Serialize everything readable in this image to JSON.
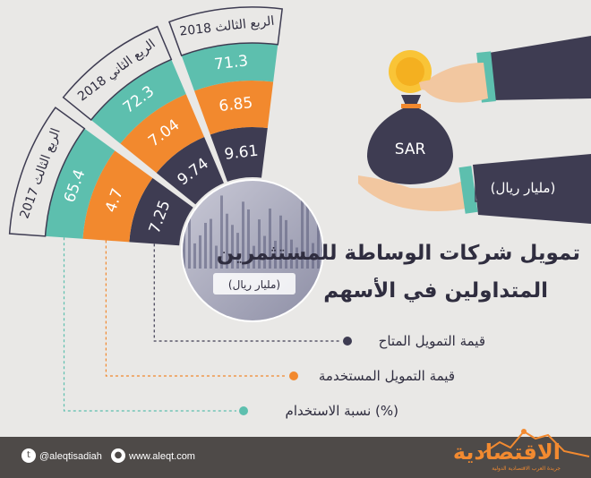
{
  "title_line1": "تمويل شركات الوساطة للمستثمرين",
  "title_line2": "المتداولين في الأسهم",
  "unit_center": "(مليار ريال)",
  "unit_box": "(مليار ريال)",
  "bag_label": "SAR",
  "colors": {
    "teal": "#5dbfae",
    "orange": "#f2892e",
    "dark": "#3e3c52",
    "bg": "#e9e8e6",
    "brand": "#f28a30"
  },
  "legend": [
    {
      "label": "قيمة التمويل المتاح",
      "color": "#3e3c52"
    },
    {
      "label": "قيمة التمويل المستخدمة",
      "color": "#f2892e"
    },
    {
      "label": "نسبة الاستخدام (%)",
      "color": "#5dbfae"
    }
  ],
  "chart_data": {
    "type": "bar",
    "categories": [
      "الربع الثالث 2017",
      "الربع الثاني 2018",
      "الربع الثالث 2018"
    ],
    "series": [
      {
        "name": "قيمة التمويل المتاح",
        "values": [
          7.25,
          9.74,
          9.61
        ],
        "labels": [
          "7.25",
          "9.74",
          "9.61"
        ]
      },
      {
        "name": "قيمة التمويل المستخدمة",
        "values": [
          4.7,
          7.04,
          6.85
        ],
        "labels": [
          "4.7",
          "7.04",
          "6.85"
        ]
      },
      {
        "name": "نسبة الاستخدام (%)",
        "values": [
          65.4,
          72.3,
          71.3
        ],
        "labels": [
          "65.4",
          "72.3",
          "71.3"
        ]
      }
    ]
  },
  "footer": {
    "twitter": "@aleqtisadiah",
    "website": "www.aleqt.com",
    "brand": "الاقتصادية",
    "brand_sub": "جريدة العرب الاقتصادية الدولية"
  }
}
